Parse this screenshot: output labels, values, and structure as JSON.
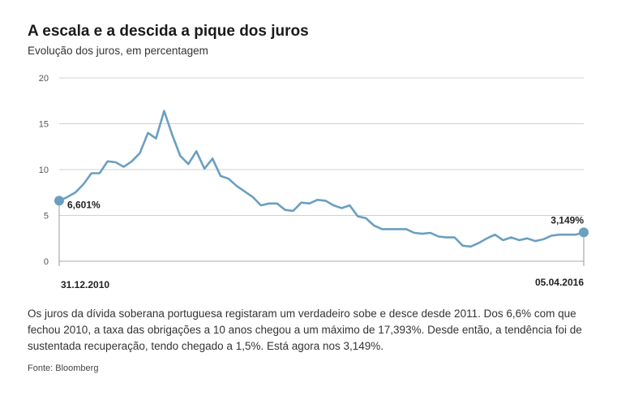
{
  "header": {
    "title": "A escala e a descida a pique dos juros",
    "subtitle": "Evolução dos juros, em percentagem"
  },
  "description": "Os juros da dívida soberana portuguesa registaram um verdadeiro sobe e desce desde 2011. Dos 6,6% com que fechou 2010, a taxa das obrigações a 10 anos chegou a um máximo de 17,393%. Desde então, a tendência foi de sustentada recuperação, tendo chegado a 1,5%. Está agora nos 3,149%.",
  "source": "Fonte: Bloomberg",
  "chart_data": {
    "type": "line",
    "title": "A escala e a descida a pique dos juros",
    "subtitle": "Evolução dos juros, em percentagem",
    "ylim": [
      0,
      20
    ],
    "yticks": [
      0,
      5,
      10,
      15,
      20
    ],
    "grid": true,
    "line_color": "#6a9fc0",
    "start_label": "31.12.2010",
    "end_label": "05.04.2016",
    "annotations": [
      {
        "index": 0,
        "text": "6,601%"
      },
      {
        "index": 65,
        "text": "3,149%"
      }
    ],
    "series": [
      {
        "values": [
          6.6,
          7.0,
          7.5,
          8.4,
          9.6,
          9.6,
          10.9,
          10.8,
          10.3,
          10.9,
          11.8,
          14.0,
          13.4,
          16.4,
          13.8,
          11.5,
          10.6,
          12.0,
          10.1,
          11.2,
          9.3,
          9.0,
          8.2,
          7.6,
          7.0,
          6.1,
          6.3,
          6.3,
          5.6,
          5.5,
          6.4,
          6.3,
          6.7,
          6.6,
          6.1,
          5.8,
          6.1,
          4.9,
          4.7,
          3.9,
          3.5,
          3.5,
          3.5,
          3.5,
          3.1,
          3.0,
          3.1,
          2.7,
          2.6,
          2.6,
          1.7,
          1.6,
          2.0,
          2.5,
          2.9,
          2.3,
          2.6,
          2.3,
          2.5,
          2.2,
          2.4,
          2.8,
          2.9,
          2.9,
          2.9,
          3.149
        ]
      }
    ]
  }
}
